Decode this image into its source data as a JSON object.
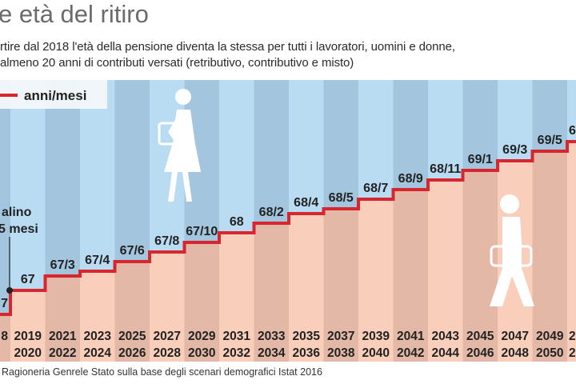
{
  "title": "e età del ritiro",
  "subtitle_lines": [
    "rtire dal 2018 l'età della pensione diventa la stessa per tutti i lavoratori, uomini e donne,",
    "almeno 20 anni di contributi versati (retributivo, contributivo e misto)"
  ],
  "legend": {
    "label": "anni/mesi",
    "line_color": "#d7262d"
  },
  "annotation": {
    "line1": "alino",
    "line2": "5 mesi"
  },
  "footnote": "Ragioneria Genrele Stato sulla base degli scenari demografici Istat 2016",
  "icons": [
    "woman-worker-icon",
    "man-worker-icon"
  ],
  "colors": {
    "sky_light": "#b9dcf3",
    "sky_dark": "#a3c5de",
    "fill_light": "#f9cfbb",
    "fill_dark": "#e3b8a6",
    "step_line": "#d7262d"
  },
  "chart_data": {
    "type": "step-line",
    "unit": "anni/mesi",
    "categories": [
      [
        "8",
        ""
      ],
      [
        "2019",
        "2020"
      ],
      [
        "2021",
        "2022"
      ],
      [
        "2023",
        "2024"
      ],
      [
        "2025",
        "2026"
      ],
      [
        "2027",
        "2028"
      ],
      [
        "2029",
        "2030"
      ],
      [
        "2031",
        "2032"
      ],
      [
        "2033",
        "2034"
      ],
      [
        "2035",
        "2036"
      ],
      [
        "2037",
        "2038"
      ],
      [
        "2039",
        "2040"
      ],
      [
        "2041",
        "2042"
      ],
      [
        "2043",
        "2044"
      ],
      [
        "2045",
        "2046"
      ],
      [
        "2047",
        "2048"
      ],
      [
        "2049",
        "2050"
      ],
      [
        "2",
        "2"
      ]
    ],
    "labels": [
      "7",
      "67",
      "67/3",
      "67/4",
      "67/6",
      "67/8",
      "67/10",
      "68",
      "68/2",
      "68/4",
      "68/5",
      "68/7",
      "68/9",
      "68/11",
      "69/1",
      "69/3",
      "69/5",
      "6"
    ],
    "values_years": [
      66.583,
      67.0,
      67.25,
      67.333,
      67.5,
      67.667,
      67.833,
      68.0,
      68.167,
      68.333,
      68.417,
      68.583,
      68.75,
      68.917,
      69.083,
      69.25,
      69.417,
      69.583
    ]
  }
}
